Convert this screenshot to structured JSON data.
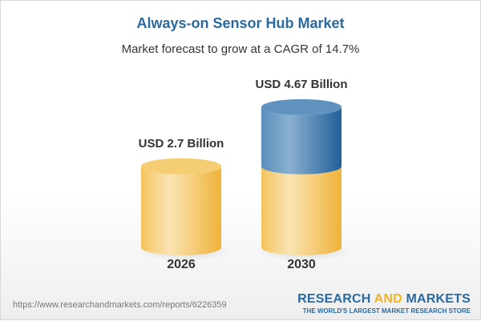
{
  "title": "Always-on Sensor Hub Market",
  "subtitle": "Market forecast to grow at a CAGR of 14.7%",
  "chart_data": {
    "type": "bar",
    "style": "3d-cylinder",
    "categories": [
      "2026",
      "2030"
    ],
    "values": [
      2.7,
      4.67
    ],
    "data_labels": [
      "USD 2.7 Billion",
      "USD 4.67 Billion"
    ],
    "unit": "USD Billion",
    "colors": {
      "base": "#f3c55a",
      "growth": "#3f7bb0"
    }
  },
  "footer": {
    "url": "https://www.researchandmarkets.com/reports/6226359",
    "logo_part1": "RESEARCH ",
    "logo_part2": "AND",
    "logo_part3": " MARKETS",
    "tagline": "THE WORLD'S LARGEST MARKET RESEARCH STORE"
  }
}
